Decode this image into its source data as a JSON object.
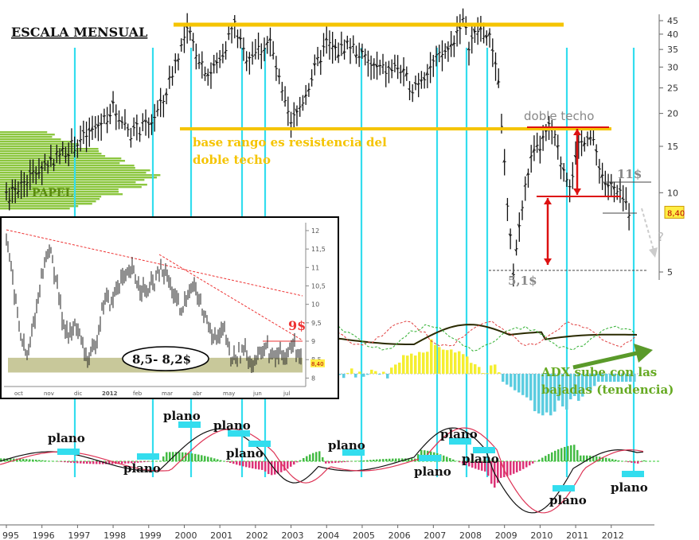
{
  "title": "ESCALA MENSUAL",
  "colors": {
    "resistance": "#f5c400",
    "cyan": "#33ddee",
    "red": "#dd1111",
    "green_label": "#66aa22",
    "price_bar": "#111111",
    "volume_profile": "#8cc63f",
    "inset_band": "#c8c89a"
  },
  "chart_data": [
    {
      "type": "line",
      "title": "ESCALA MENSUAL",
      "x_tick_labels": [
        "995",
        "1996",
        "1997",
        "1998",
        "1999",
        "2000",
        "2001",
        "2002",
        "2003",
        "2004",
        "2005",
        "2006",
        "2007",
        "2008",
        "2009",
        "2010",
        "2011",
        "2012"
      ],
      "y_tick_labels": [
        "45",
        "40",
        "35",
        "30",
        "25",
        "20",
        "15",
        "10",
        "5"
      ],
      "y_scale": "log",
      "ylim": [
        4.2,
        48
      ],
      "current_price": "8,40",
      "series": [
        {
          "values_by_year": [
            [
              1995.0,
              9.5
            ],
            [
              1995.5,
              11
            ],
            [
              1996.0,
              12.5
            ],
            [
              1996.5,
              14
            ],
            [
              1997.0,
              15.5
            ],
            [
              1997.5,
              17.5
            ],
            [
              1998.0,
              21
            ],
            [
              1998.5,
              17
            ],
            [
              1999.0,
              18
            ],
            [
              1999.4,
              22
            ],
            [
              1999.8,
              33
            ],
            [
              2000.1,
              41
            ],
            [
              2000.4,
              33
            ],
            [
              2000.7,
              28
            ],
            [
              2001.0,
              32
            ],
            [
              2001.4,
              44
            ],
            [
              2001.7,
              33
            ],
            [
              2002.1,
              35
            ],
            [
              2002.4,
              38
            ],
            [
              2002.8,
              22
            ],
            [
              2003.0,
              18
            ],
            [
              2003.3,
              22
            ],
            [
              2003.7,
              30
            ],
            [
              2004.0,
              37
            ],
            [
              2004.3,
              34
            ],
            [
              2004.6,
              37
            ],
            [
              2004.9,
              34
            ],
            [
              2005.3,
              30
            ],
            [
              2005.7,
              29
            ],
            [
              2006.0,
              30
            ],
            [
              2006.4,
              25
            ],
            [
              2006.8,
              29
            ],
            [
              2007.1,
              32
            ],
            [
              2007.5,
              36
            ],
            [
              2007.8,
              46
            ],
            [
              2008.0,
              37
            ],
            [
              2008.3,
              42
            ],
            [
              2008.6,
              38
            ],
            [
              2008.8,
              30
            ],
            [
              2008.95,
              16
            ],
            [
              2009.1,
              8
            ],
            [
              2009.25,
              5.1
            ],
            [
              2009.45,
              8
            ],
            [
              2009.7,
              13
            ],
            [
              2010.0,
              15
            ],
            [
              2010.3,
              18
            ],
            [
              2010.6,
              13
            ],
            [
              2010.85,
              11
            ],
            [
              2011.1,
              15
            ],
            [
              2011.35,
              17
            ],
            [
              2011.6,
              14
            ],
            [
              2011.8,
              11
            ],
            [
              2012.0,
              10.5
            ],
            [
              2012.3,
              9.5
            ],
            [
              2012.55,
              8.4
            ]
          ]
        }
      ],
      "annotations": {
        "resistance_label": "base rango es resistencia del\ndoble techo",
        "double_top_label": "doble techo",
        "level_11_label": "11$",
        "level_5_label": "5,1$",
        "question": "?",
        "paper_label": "PAPEL",
        "adx_label": "ADX sube con las\nbajadas (tendencia)"
      }
    },
    {
      "type": "line",
      "subtitle": "inset daily",
      "x_tick_labels": [
        "oct",
        "nov",
        "dic",
        "2012",
        "feb",
        "mar",
        "abr",
        "may",
        "jun",
        "jul"
      ],
      "y_tick_labels": [
        "12",
        "11,5",
        "11",
        "10,5",
        "10",
        "9,5",
        "9",
        "8,5",
        "8"
      ],
      "ylim": [
        7.9,
        12.15
      ],
      "current_price": "8,40",
      "series": [
        {
          "values": [
            11.9,
            10.5,
            9.2,
            8.5,
            9.6,
            10.7,
            11.6,
            10.8,
            9.6,
            9.1,
            9.5,
            8.7,
            8.5,
            9.2,
            10.2,
            10.0,
            10.6,
            10.7,
            10.9,
            10.5,
            10.3,
            10.6,
            10.9,
            10.7,
            10.2,
            9.7,
            10.5,
            10.4,
            9.8,
            9.4,
            9.0,
            9.3,
            8.5,
            8.6,
            8.8,
            8.4,
            8.6,
            8.9,
            8.5,
            8.7,
            8.6,
            9.0,
            8.4
          ]
        }
      ],
      "annotations": {
        "level_9_label": "9$",
        "range_label": "8,5- 8,2$"
      }
    }
  ],
  "plano_labels": [
    "plano",
    "plano",
    "plano",
    "plano",
    "plano",
    "plano",
    "plano",
    "plano",
    "plano",
    "plano",
    "plano"
  ]
}
